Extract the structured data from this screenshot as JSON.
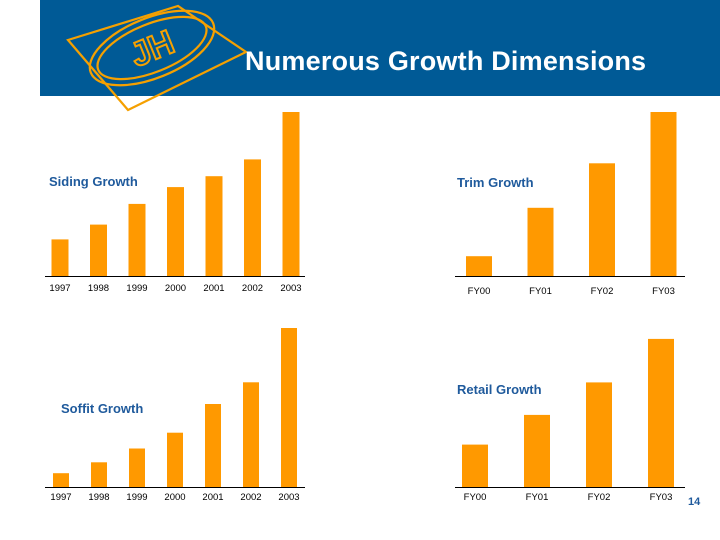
{
  "slide": {
    "title": "Numerous Growth Dimensions",
    "page_number": "14",
    "banner_color": "#005a96",
    "accent_color": "#f5a000",
    "bar_color": "#ff9900",
    "logo": {
      "icon": "jh-monogram-logo",
      "text": "JH"
    }
  },
  "chart_data": [
    {
      "id": "siding",
      "type": "bar",
      "title": "Siding Growth",
      "categories": [
        "1997",
        "1998",
        "1999",
        "2000",
        "2001",
        "2002",
        "2003"
      ],
      "values": [
        37,
        52,
        73,
        90,
        101,
        118,
        166
      ],
      "ylim": [
        0,
        170
      ],
      "grid": false
    },
    {
      "id": "trim",
      "type": "bar",
      "title": "Trim Growth",
      "categories": [
        "FY00",
        "FY01",
        "FY02",
        "FY03"
      ],
      "values": [
        20,
        69,
        114,
        166
      ],
      "ylim": [
        0,
        170
      ],
      "grid": false
    },
    {
      "id": "soffit",
      "type": "bar",
      "title": "Soffit Growth",
      "categories": [
        "1997",
        "1998",
        "1999",
        "2000",
        "2001",
        "2002",
        "2003"
      ],
      "values": [
        14,
        25,
        39,
        55,
        84,
        106,
        161
      ],
      "ylim": [
        0,
        165
      ],
      "grid": false
    },
    {
      "id": "retail",
      "type": "bar",
      "title": "Retail Growth",
      "categories": [
        "FY00",
        "FY01",
        "FY02",
        "FY03"
      ],
      "values": [
        43,
        73,
        106,
        150
      ],
      "ylim": [
        0,
        155
      ],
      "grid": false
    }
  ]
}
